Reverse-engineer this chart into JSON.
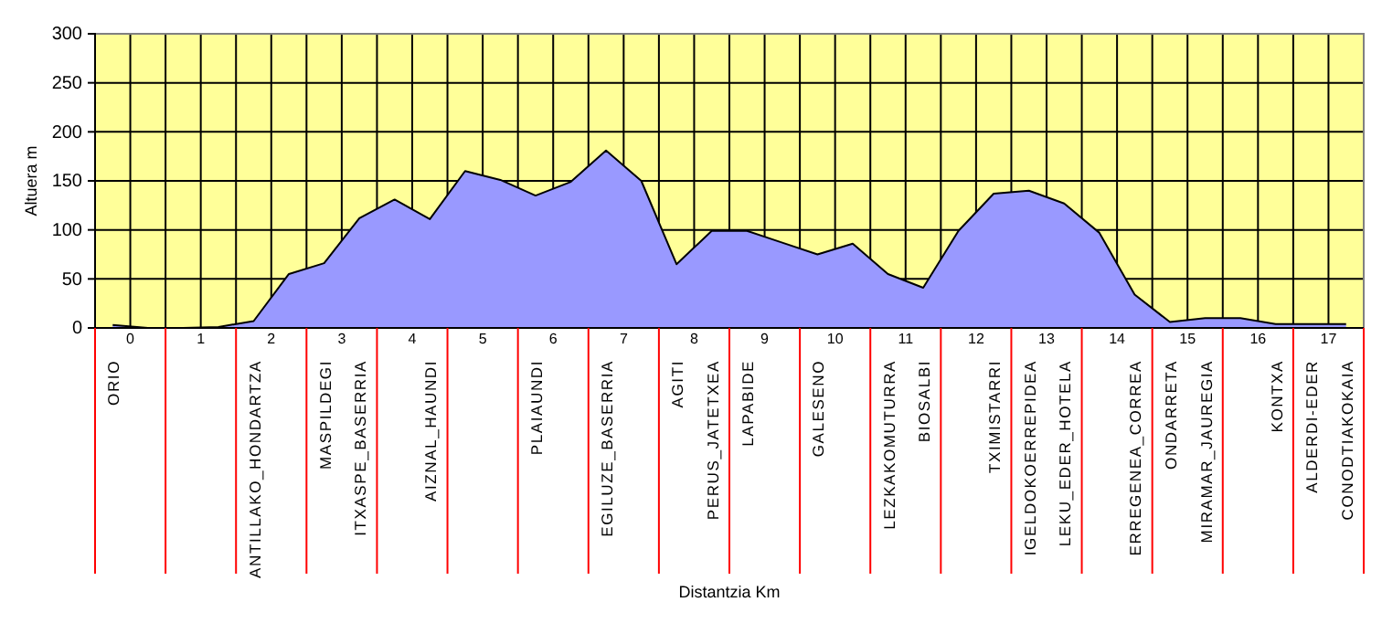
{
  "chart_data": {
    "type": "area",
    "xlabel": "Distantzia Km",
    "ylabel": "Altuera m",
    "categories": [
      "ORIO",
      null,
      null,
      null,
      "ANTILLAKO_HONDARTZA",
      null,
      "MASPILDEGI",
      "ITXASPE_BASERRIA",
      null,
      "AIZNAL_HAUNDI",
      null,
      null,
      "PLAIAUNDI",
      null,
      "EGILUZE_BASERRIA",
      null,
      "AGITI",
      "PERUS_JATETXEA",
      "LAPABIDE",
      null,
      "GALESENO",
      null,
      "LEZKAKOMUTURRA",
      "BIOSALBI",
      null,
      "TXIMISTARRI",
      "IGELDOKOERREPIDEA",
      "LEKU_EDER_HOTELA",
      null,
      "ERREGENEA_CORREA",
      "ONDARRETA",
      "MIRAMAR_JAUREGIA",
      null,
      "KONTXA",
      "ALDERDI-EDER",
      "CONODTIAKOKAIA"
    ],
    "values": [
      3,
      0,
      0,
      1,
      7,
      55,
      66,
      112,
      131,
      111,
      160,
      151,
      135,
      149,
      181,
      150,
      65,
      99,
      99,
      87,
      75,
      86,
      55,
      41,
      99,
      137,
      140,
      127,
      97,
      34,
      6,
      10,
      10,
      4,
      4,
      4
    ],
    "color": "#9999ff",
    "ylim": [
      0,
      300
    ],
    "yticks": [
      0,
      50,
      100,
      150,
      200,
      250,
      300
    ],
    "x2lim": [
      -0.5,
      17.5
    ],
    "x2ticks": [
      {
        "value": -0.5,
        "label": null
      },
      0,
      {
        "value": 0.5,
        "label": null
      },
      1,
      {
        "value": 1.5,
        "label": null
      },
      2,
      {
        "value": 2.5,
        "label": null
      },
      3,
      {
        "value": 3.5,
        "label": null
      },
      4,
      {
        "value": 4.5,
        "label": null
      },
      5,
      {
        "value": 5.5,
        "label": null
      },
      6,
      {
        "value": 6.5,
        "label": null
      },
      7,
      {
        "value": 7.5,
        "label": null
      },
      8,
      {
        "value": 8.5,
        "label": null
      },
      9,
      {
        "value": 9.5,
        "label": null
      },
      10,
      {
        "value": 10.5,
        "label": null
      },
      11,
      {
        "value": 11.5,
        "label": null
      },
      12,
      {
        "value": 12.5,
        "label": null
      },
      13,
      {
        "value": 13.5,
        "label": null
      },
      14,
      {
        "value": 14.5,
        "label": null
      },
      15,
      {
        "value": 15.5,
        "label": null
      },
      16,
      {
        "value": 16.5,
        "label": null
      },
      17,
      {
        "value": 17.5,
        "label": null
      }
    ],
    "grid": true
  }
}
